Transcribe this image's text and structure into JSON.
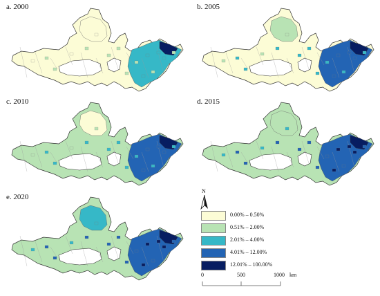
{
  "panels": [
    {
      "label": "a. 2000"
    },
    {
      "label": "b. 2005"
    },
    {
      "label": "c. 2010"
    },
    {
      "label": "d. 2015"
    },
    {
      "label": "e. 2020"
    }
  ],
  "legend": {
    "items": [
      {
        "label": "0.00% – 0.50%",
        "color": "#fcfcd6"
      },
      {
        "label": "0.51% – 2.00%",
        "color": "#b8e3b4"
      },
      {
        "label": "2.01% – 4.00%",
        "color": "#36b8c7"
      },
      {
        "label": "4.01% – 12.00%",
        "color": "#2364b4"
      },
      {
        "label": "12.01% – 100.00%",
        "color": "#071d61"
      }
    ]
  },
  "north_arrow": {
    "label": "N"
  },
  "scale": {
    "ticks": [
      "0",
      "500",
      "1000"
    ],
    "unit": "km"
  }
}
